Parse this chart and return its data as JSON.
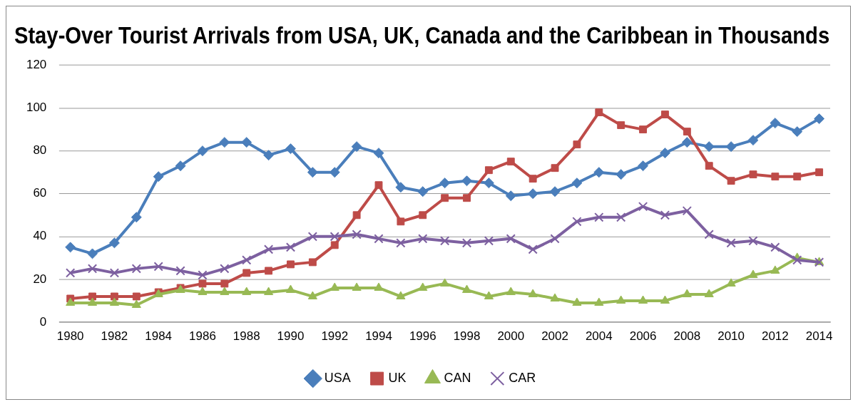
{
  "chart_data": {
    "type": "line",
    "title": "Stay-Over Tourist Arrivals from USA, UK, Canada and the Caribbean in Thousands",
    "categories": [
      "1980",
      null,
      "1982",
      null,
      "1984",
      null,
      "1986",
      null,
      "1988",
      null,
      "1990",
      null,
      "1992",
      null,
      "1994",
      null,
      "1996",
      null,
      "1998",
      null,
      "2000",
      null,
      "2002",
      null,
      "2004",
      null,
      "2006",
      null,
      "2008",
      null,
      "2010",
      null,
      "2012",
      null,
      "2014"
    ],
    "series": [
      {
        "name": "USA",
        "color": "#4a7ebb",
        "marker": "diamond",
        "values": [
          35,
          32,
          37,
          49,
          68,
          73,
          80,
          84,
          84,
          78,
          81,
          70,
          70,
          82,
          79,
          63,
          61,
          65,
          66,
          65,
          59,
          60,
          61,
          65,
          70,
          69,
          73,
          79,
          84,
          82,
          82,
          85,
          93,
          89,
          95
        ]
      },
      {
        "name": "UK",
        "color": "#be4b48",
        "marker": "square",
        "values": [
          11,
          12,
          12,
          12,
          14,
          16,
          18,
          18,
          23,
          24,
          27,
          28,
          36,
          50,
          64,
          47,
          50,
          58,
          58,
          71,
          75,
          67,
          72,
          83,
          98,
          92,
          90,
          97,
          89,
          73,
          66,
          69,
          68,
          68,
          70
        ]
      },
      {
        "name": "CAN",
        "color": "#98b954",
        "marker": "triangle",
        "values": [
          9,
          9,
          9,
          8,
          13,
          15,
          14,
          14,
          14,
          14,
          15,
          12,
          16,
          16,
          16,
          12,
          16,
          18,
          15,
          12,
          14,
          13,
          11,
          9,
          9,
          10,
          10,
          10,
          13,
          13,
          18,
          22,
          24,
          30,
          28
        ]
      },
      {
        "name": "CAR",
        "color": "#7d60a0",
        "marker": "cross",
        "values": [
          23,
          25,
          23,
          25,
          26,
          24,
          22,
          25,
          29,
          34,
          35,
          40,
          40,
          41,
          39,
          37,
          39,
          38,
          37,
          38,
          39,
          34,
          39,
          47,
          49,
          49,
          54,
          50,
          52,
          41,
          37,
          38,
          35,
          29,
          28
        ]
      }
    ],
    "ylim": [
      0,
      120
    ],
    "yticks": [
      0,
      20,
      40,
      60,
      80,
      100,
      120
    ],
    "grid": "y",
    "legend": "bottom",
    "line_style": "solid"
  }
}
